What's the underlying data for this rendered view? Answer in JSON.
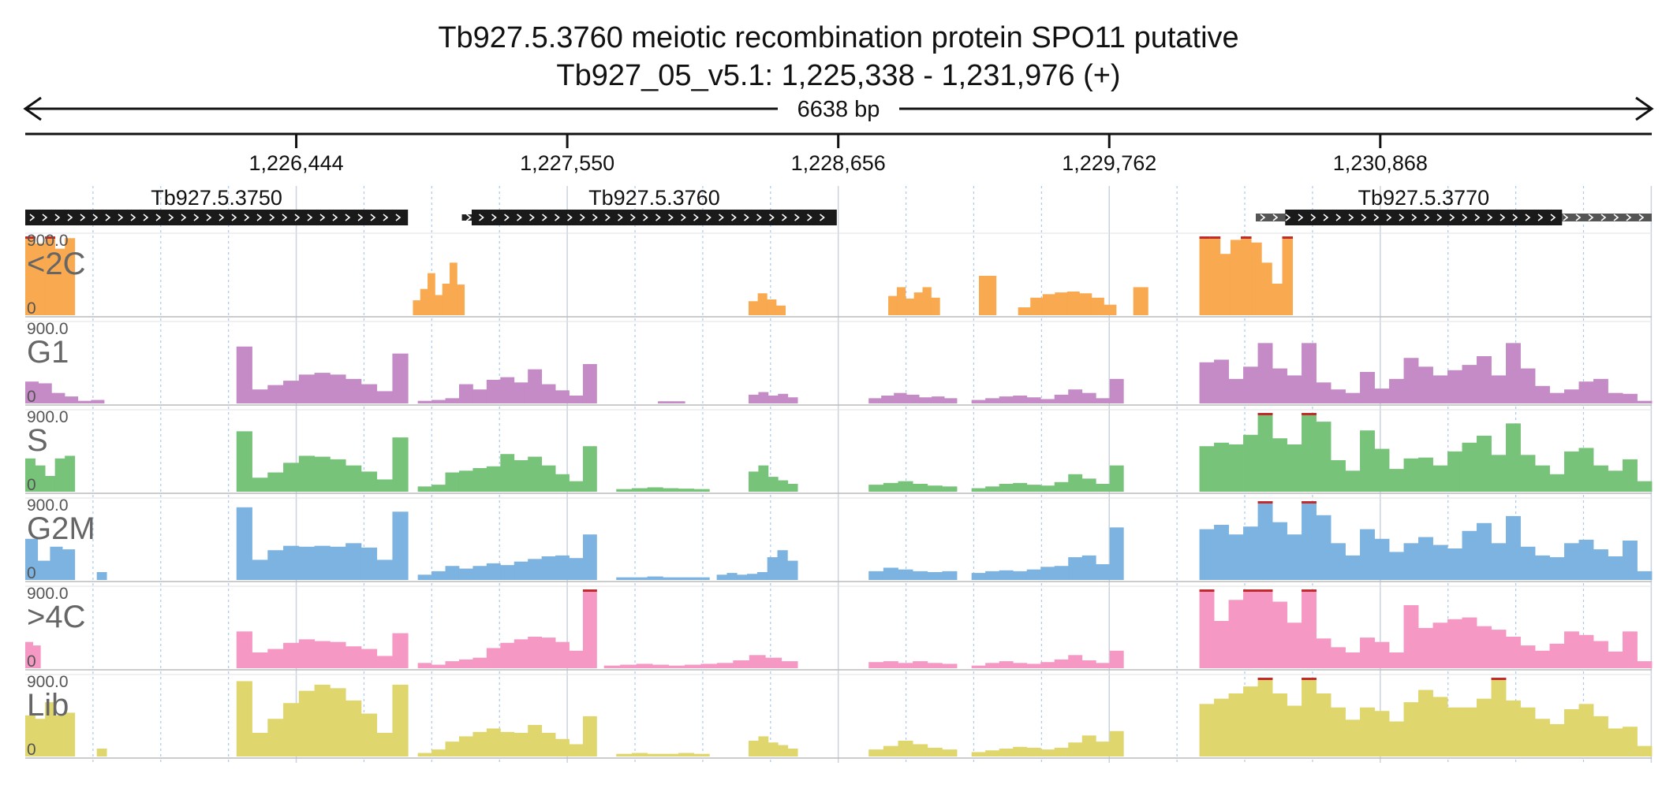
{
  "header": {
    "title": "Tb927.5.3760  meiotic recombination protein SPO11  putative",
    "subtitle": "Tb927_05_v5.1: 1,225,338 - 1,231,976 (+)",
    "span_label": "6638 bp"
  },
  "chart_data": {
    "type": "area",
    "x_range": [
      1225338,
      1231976
    ],
    "ticks": [
      {
        "value": 1226444,
        "label": "1,226,444"
      },
      {
        "value": 1227550,
        "label": "1,227,550"
      },
      {
        "value": 1228656,
        "label": "1,228,656"
      },
      {
        "value": 1229762,
        "label": "1,229,762"
      },
      {
        "value": 1230868,
        "label": "1,230,868"
      }
    ],
    "genes": [
      {
        "name": "Tb927.5.3750",
        "start": 1225338,
        "end": 1226900,
        "strand": "+"
      },
      {
        "name": "Tb927.5.3760",
        "start": 1227160,
        "end": 1228650,
        "strand": "+",
        "leader_start": 1227120
      },
      {
        "name": "Tb927.5.3770",
        "start": 1230480,
        "end": 1231610,
        "strand": "+",
        "utr5_start": 1230360,
        "utr3_end": 1231976
      }
    ],
    "y_range": [
      0,
      900
    ],
    "y_max_label": "900.0",
    "y_min_label": "0",
    "tracks": [
      {
        "name": "<2C",
        "color": "#F9A94F",
        "segments": [
          {
            "start": 1225338,
            "end": 1225540,
            "values": [
              900,
              820,
              900,
              760,
              880
            ]
          },
          {
            "start": 1226920,
            "end": 1227130,
            "values": [
              170,
              300,
              480,
              230,
              360,
              600,
              350
            ]
          },
          {
            "start": 1228290,
            "end": 1228440,
            "values": [
              160,
              250,
              180,
              110
            ]
          },
          {
            "start": 1228860,
            "end": 1229070,
            "values": [
              220,
              320,
              190,
              260,
              320,
              200
            ]
          },
          {
            "start": 1229230,
            "end": 1229300,
            "values": [
              450,
              450
            ]
          },
          {
            "start": 1229390,
            "end": 1229790,
            "values": [
              90,
              200,
              240,
              260,
              270,
              250,
              200,
              120
            ]
          },
          {
            "start": 1229860,
            "end": 1229920,
            "values": [
              320,
              320
            ]
          },
          {
            "start": 1230130,
            "end": 1230510,
            "values": [
              900,
              900,
              700,
              860,
              900,
              830,
              600,
              360,
              900
            ]
          }
        ]
      },
      {
        "name": "G1",
        "color": "#C48BC6",
        "segments": [
          {
            "start": 1225338,
            "end": 1225660,
            "values": [
              250,
              230,
              120,
              80,
              30,
              40
            ]
          },
          {
            "start": 1226200,
            "end": 1226900,
            "values": [
              650,
              160,
              210,
              260,
              330,
              350,
              330,
              280,
              220,
              140,
              570
            ]
          },
          {
            "start": 1226940,
            "end": 1227670,
            "values": [
              30,
              40,
              60,
              220,
              160,
              270,
              300,
              240,
              390,
              220,
              150,
              90,
              450
            ]
          },
          {
            "start": 1227920,
            "end": 1228030,
            "values": [
              25,
              25
            ]
          },
          {
            "start": 1228290,
            "end": 1228490,
            "values": [
              100,
              130,
              90,
              110,
              70
            ]
          },
          {
            "start": 1228780,
            "end": 1229140,
            "values": [
              60,
              90,
              120,
              100,
              70,
              80,
              60
            ]
          },
          {
            "start": 1229200,
            "end": 1229820,
            "values": [
              40,
              60,
              80,
              90,
              70,
              50,
              100,
              160,
              120,
              60,
              280
            ]
          },
          {
            "start": 1230130,
            "end": 1231976,
            "values": [
              470,
              500,
              280,
              420,
              690,
              400,
              320,
              690,
              240,
              160,
              120,
              360,
              170,
              280,
              520,
              420,
              320,
              380,
              440,
              540,
              320,
              690,
              400,
              200,
              120,
              160,
              250,
              280,
              120,
              110,
              30
            ]
          }
        ]
      },
      {
        "name": "S",
        "color": "#77C37A",
        "segments": [
          {
            "start": 1225338,
            "end": 1225540,
            "values": [
              380,
              300,
              180,
              380,
              410
            ]
          },
          {
            "start": 1226200,
            "end": 1226900,
            "values": [
              690,
              160,
              220,
              330,
              410,
              400,
              370,
              300,
              230,
              140,
              620
            ]
          },
          {
            "start": 1226940,
            "end": 1227670,
            "values": [
              60,
              80,
              220,
              240,
              270,
              290,
              430,
              360,
              400,
              300,
              200,
              120,
              520
            ]
          },
          {
            "start": 1227750,
            "end": 1228130,
            "values": [
              30,
              40,
              50,
              40,
              35,
              30
            ]
          },
          {
            "start": 1228290,
            "end": 1228490,
            "values": [
              230,
              300,
              170,
              130,
              90
            ]
          },
          {
            "start": 1228780,
            "end": 1229140,
            "values": [
              80,
              100,
              120,
              90,
              70,
              60
            ]
          },
          {
            "start": 1229200,
            "end": 1229820,
            "values": [
              40,
              60,
              90,
              100,
              80,
              70,
              110,
              200,
              150,
              90,
              300
            ]
          },
          {
            "start": 1230130,
            "end": 1231976,
            "values": [
              520,
              560,
              540,
              650,
              900,
              610,
              540,
              900,
              800,
              360,
              240,
              700,
              490,
              260,
              380,
              390,
              300,
              460,
              560,
              640,
              420,
              780,
              420,
              300,
              200,
              460,
              500,
              300,
              240,
              370,
              120
            ]
          }
        ]
      },
      {
        "name": "G2M",
        "color": "#7CB3E0",
        "segments": [
          {
            "start": 1225338,
            "end": 1225540,
            "values": [
              470,
              220,
              380,
              350
            ]
          },
          {
            "start": 1225630,
            "end": 1225670,
            "values": [
              90,
              90
            ]
          },
          {
            "start": 1226200,
            "end": 1226900,
            "values": [
              830,
              230,
              340,
              390,
              380,
              390,
              380,
              420,
              370,
              230,
              780
            ]
          },
          {
            "start": 1226940,
            "end": 1227670,
            "values": [
              60,
              100,
              160,
              130,
              160,
              190,
              170,
              210,
              240,
              270,
              280,
              250,
              520
            ]
          },
          {
            "start": 1227750,
            "end": 1228130,
            "values": [
              30,
              30,
              40,
              30,
              30,
              30
            ]
          },
          {
            "start": 1228160,
            "end": 1228490,
            "values": [
              60,
              80,
              60,
              70,
              90,
              260,
              340,
              220
            ]
          },
          {
            "start": 1228780,
            "end": 1229140,
            "values": [
              100,
              140,
              120,
              100,
              90,
              100
            ]
          },
          {
            "start": 1229200,
            "end": 1229820,
            "values": [
              80,
              100,
              110,
              100,
              120,
              150,
              160,
              260,
              280,
              180,
              600
            ]
          },
          {
            "start": 1230130,
            "end": 1231976,
            "values": [
              580,
              630,
              520,
              610,
              900,
              660,
              520,
              900,
              740,
              420,
              280,
              580,
              470,
              320,
              420,
              490,
              400,
              360,
              560,
              650,
              420,
              730,
              380,
              280,
              260,
              420,
              460,
              350,
              270,
              450,
              100
            ]
          }
        ]
      },
      {
        "name": ">4C",
        "color": "#F598C4",
        "segments": [
          {
            "start": 1225338,
            "end": 1225400,
            "values": [
              300,
              260
            ]
          },
          {
            "start": 1226200,
            "end": 1226900,
            "values": [
              420,
              180,
              220,
              290,
              330,
              310,
              300,
              250,
              220,
              140,
              400
            ]
          },
          {
            "start": 1226940,
            "end": 1227670,
            "values": [
              60,
              40,
              80,
              100,
              120,
              230,
              290,
              330,
              360,
              350,
              300,
              200,
              900
            ]
          },
          {
            "start": 1227700,
            "end": 1228490,
            "values": [
              30,
              40,
              50,
              40,
              30,
              40,
              50,
              60,
              90,
              150,
              120,
              80
            ]
          },
          {
            "start": 1228780,
            "end": 1229140,
            "values": [
              70,
              80,
              60,
              80,
              60,
              50
            ]
          },
          {
            "start": 1229200,
            "end": 1229820,
            "values": [
              30,
              60,
              80,
              60,
              50,
              70,
              100,
              150,
              90,
              60,
              200
            ]
          },
          {
            "start": 1230130,
            "end": 1231976,
            "values": [
              900,
              540,
              780,
              900,
              900,
              760,
              520,
              900,
              340,
              240,
              180,
              350,
              300,
              180,
              720,
              460,
              520,
              560,
              580,
              480,
              440,
              360,
              260,
              200,
              280,
              420,
              380,
              310,
              190,
              420,
              80
            ]
          }
        ]
      },
      {
        "name": "Lib",
        "color": "#E0D66E",
        "segments": [
          {
            "start": 1225338,
            "end": 1225540,
            "values": [
              470,
              430,
              620,
              470,
              500
            ]
          },
          {
            "start": 1225630,
            "end": 1225670,
            "values": [
              90,
              90
            ]
          },
          {
            "start": 1226200,
            "end": 1226900,
            "values": [
              860,
              270,
              430,
              610,
              750,
              820,
              780,
              640,
              490,
              270,
              820
            ]
          },
          {
            "start": 1226940,
            "end": 1227670,
            "values": [
              40,
              80,
              170,
              230,
              280,
              320,
              280,
              270,
              360,
              270,
              200,
              140,
              460
            ]
          },
          {
            "start": 1227750,
            "end": 1228130,
            "values": [
              30,
              40,
              30,
              30,
              40,
              30
            ]
          },
          {
            "start": 1228290,
            "end": 1228490,
            "values": [
              180,
              230,
              160,
              130,
              90
            ]
          },
          {
            "start": 1228780,
            "end": 1229140,
            "values": [
              80,
              120,
              180,
              140,
              100,
              80
            ]
          },
          {
            "start": 1229200,
            "end": 1229820,
            "values": [
              50,
              70,
              90,
              110,
              100,
              80,
              100,
              160,
              240,
              170,
              290
            ]
          },
          {
            "start": 1230130,
            "end": 1231976,
            "values": [
              600,
              660,
              720,
              800,
              900,
              720,
              580,
              900,
              720,
              560,
              420,
              560,
              520,
              400,
              620,
              760,
              680,
              560,
              560,
              660,
              900,
              640,
              560,
              430,
              370,
              540,
              600,
              460,
              320,
              340,
              120
            ]
          }
        ]
      }
    ],
    "clipped_color": "#C22B2B"
  }
}
